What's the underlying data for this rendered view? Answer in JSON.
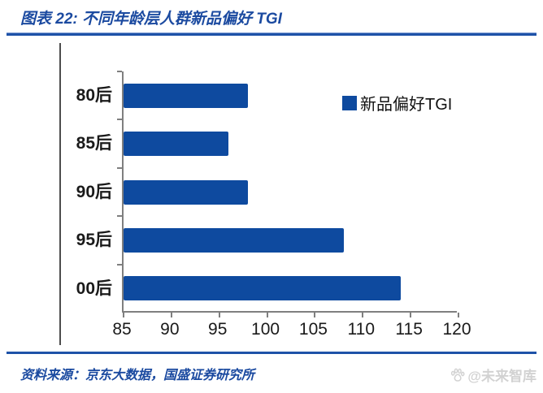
{
  "header": {
    "title": "图表 22:  不同年龄层人群新品偏好 TGI"
  },
  "legend": {
    "label": "新品偏好TGI"
  },
  "footer": {
    "source": "资料来源：京东大数据，国盛证券研究所",
    "watermark": "@未来智库"
  },
  "colors": {
    "bar": "#0e4a9f",
    "accent_text": "#1b4aa0",
    "rule": "#1e52a8",
    "axis": "#7f7f7f",
    "watermark": "#d2d2d2",
    "text": "#1a1a1a"
  },
  "chart_data": {
    "type": "bar",
    "orientation": "horizontal",
    "title": "图表 22: 不同年龄层人群新品偏好 TGI",
    "categories": [
      "80后",
      "85后",
      "90后",
      "95后",
      "00后"
    ],
    "series": [
      {
        "name": "新品偏好TGI",
        "values": [
          98,
          96,
          98,
          108,
          114
        ]
      }
    ],
    "xlabel": "",
    "ylabel": "",
    "xlim": [
      85,
      120
    ],
    "xticks": [
      85,
      90,
      95,
      100,
      105,
      110,
      115,
      120
    ],
    "grid": false,
    "legend_position": "upper right",
    "bar_color": "#0e4a9f"
  }
}
